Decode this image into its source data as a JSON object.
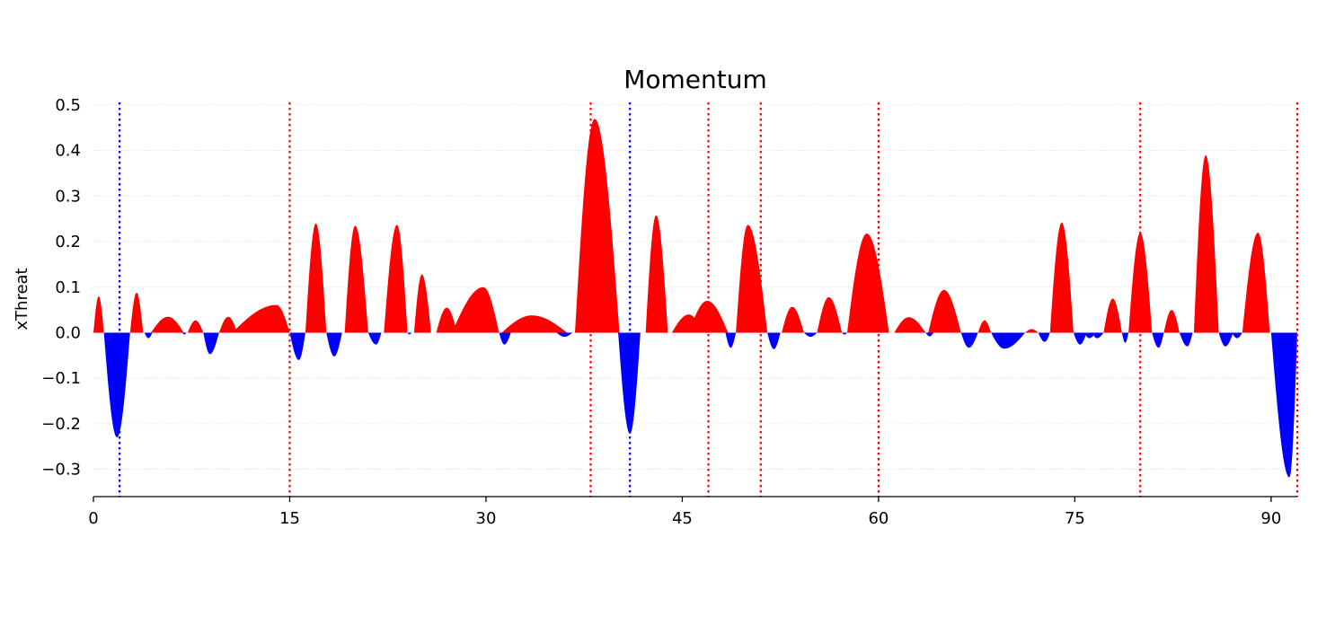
{
  "chart_data": {
    "type": "area",
    "title": "Momentum",
    "xlabel": "",
    "ylabel": "xThreat",
    "xlim": [
      0,
      92
    ],
    "ylim": [
      -0.36,
      0.5
    ],
    "xticks": [
      0,
      15,
      30,
      45,
      60,
      75,
      90
    ],
    "yticks": [
      -0.3,
      -0.2,
      -0.1,
      0.0,
      0.1,
      0.2,
      0.3,
      0.4,
      0.5
    ],
    "ytick_labels": [
      "−0.3",
      "−0.2",
      "−0.1",
      "0.0",
      "0.1",
      "0.2",
      "0.3",
      "0.4",
      "0.5"
    ],
    "grid": "horizontal",
    "positive_color": "#ff0000",
    "negative_color": "#0000ff",
    "series": [
      {
        "color": "#ff0000",
        "peaks": [
          {
            "start": 0.0,
            "end": 0.8,
            "x": 0.4,
            "y": 0.08
          },
          {
            "start": 2.8,
            "end": 3.8,
            "x": 3.3,
            "y": 0.088
          },
          {
            "start": 4.4,
            "end": 6.9,
            "x": 5.7,
            "y": 0.035
          },
          {
            "start": 7.2,
            "end": 8.4,
            "x": 7.8,
            "y": 0.027
          },
          {
            "start": 9.6,
            "end": 11.0,
            "x": 10.3,
            "y": 0.035
          },
          {
            "start": 10.6,
            "end": 15.0,
            "x": 14.0,
            "y": 0.061
          },
          {
            "start": 16.2,
            "end": 17.8,
            "x": 17.0,
            "y": 0.24
          },
          {
            "start": 19.2,
            "end": 21.0,
            "x": 20.0,
            "y": 0.235
          },
          {
            "start": 22.2,
            "end": 24.0,
            "x": 23.2,
            "y": 0.237
          },
          {
            "start": 24.5,
            "end": 25.8,
            "x": 25.1,
            "y": 0.128
          },
          {
            "start": 26.2,
            "end": 27.8,
            "x": 27.0,
            "y": 0.055
          },
          {
            "start": 27.4,
            "end": 31.0,
            "x": 29.8,
            "y": 0.1
          },
          {
            "start": 31.2,
            "end": 36.2,
            "x": 33.5,
            "y": 0.038
          },
          {
            "start": 36.8,
            "end": 40.2,
            "x": 38.3,
            "y": 0.47
          },
          {
            "start": 42.2,
            "end": 43.9,
            "x": 43.0,
            "y": 0.258
          },
          {
            "start": 44.2,
            "end": 46.6,
            "x": 45.5,
            "y": 0.04
          },
          {
            "start": 45.5,
            "end": 48.5,
            "x": 46.9,
            "y": 0.07
          },
          {
            "start": 49.1,
            "end": 51.5,
            "x": 50.0,
            "y": 0.237
          },
          {
            "start": 52.6,
            "end": 54.3,
            "x": 53.4,
            "y": 0.057
          },
          {
            "start": 55.3,
            "end": 57.2,
            "x": 56.2,
            "y": 0.078
          },
          {
            "start": 57.6,
            "end": 60.8,
            "x": 59.1,
            "y": 0.218
          },
          {
            "start": 61.2,
            "end": 63.6,
            "x": 62.3,
            "y": 0.034
          },
          {
            "start": 63.8,
            "end": 66.3,
            "x": 65.0,
            "y": 0.094
          },
          {
            "start": 67.6,
            "end": 68.6,
            "x": 68.1,
            "y": 0.027
          },
          {
            "start": 71.2,
            "end": 72.2,
            "x": 71.7,
            "y": 0.008
          },
          {
            "start": 73.1,
            "end": 74.9,
            "x": 74.0,
            "y": 0.242
          },
          {
            "start": 77.2,
            "end": 78.6,
            "x": 77.9,
            "y": 0.075
          },
          {
            "start": 79.1,
            "end": 80.9,
            "x": 80.0,
            "y": 0.22
          },
          {
            "start": 81.8,
            "end": 83.0,
            "x": 82.4,
            "y": 0.05
          },
          {
            "start": 84.1,
            "end": 86.0,
            "x": 85.0,
            "y": 0.39
          },
          {
            "start": 87.8,
            "end": 89.9,
            "x": 89.0,
            "y": 0.22
          }
        ]
      },
      {
        "color": "#0000ff",
        "peaks": [
          {
            "start": 0.8,
            "end": 2.8,
            "x": 1.8,
            "y": -0.23
          },
          {
            "start": 3.9,
            "end": 4.5,
            "x": 4.2,
            "y": -0.012
          },
          {
            "start": 6.8,
            "end": 7.1,
            "x": 6.95,
            "y": -0.004
          },
          {
            "start": 8.4,
            "end": 9.6,
            "x": 8.9,
            "y": -0.047
          },
          {
            "start": 15.0,
            "end": 16.2,
            "x": 15.7,
            "y": -0.06
          },
          {
            "start": 17.8,
            "end": 19.0,
            "x": 18.4,
            "y": -0.052
          },
          {
            "start": 21.0,
            "end": 22.0,
            "x": 21.6,
            "y": -0.026
          },
          {
            "start": 24.0,
            "end": 24.3,
            "x": 24.15,
            "y": -0.004
          },
          {
            "start": 31.0,
            "end": 31.9,
            "x": 31.4,
            "y": -0.026
          },
          {
            "start": 35.4,
            "end": 36.6,
            "x": 36.0,
            "y": -0.009
          },
          {
            "start": 40.1,
            "end": 41.8,
            "x": 41.0,
            "y": -0.222
          },
          {
            "start": 48.3,
            "end": 49.1,
            "x": 48.7,
            "y": -0.033
          },
          {
            "start": 51.5,
            "end": 52.5,
            "x": 52.0,
            "y": -0.036
          },
          {
            "start": 54.3,
            "end": 55.3,
            "x": 54.8,
            "y": -0.009
          },
          {
            "start": 57.2,
            "end": 57.6,
            "x": 57.4,
            "y": -0.004
          },
          {
            "start": 63.6,
            "end": 64.2,
            "x": 63.9,
            "y": -0.008
          },
          {
            "start": 66.3,
            "end": 67.6,
            "x": 66.9,
            "y": -0.033
          },
          {
            "start": 68.6,
            "end": 71.2,
            "x": 69.6,
            "y": -0.035
          },
          {
            "start": 72.2,
            "end": 73.1,
            "x": 72.7,
            "y": -0.02
          },
          {
            "start": 74.9,
            "end": 75.9,
            "x": 75.4,
            "y": -0.026
          },
          {
            "start": 75.7,
            "end": 76.6,
            "x": 76.1,
            "y": -0.012
          },
          {
            "start": 76.3,
            "end": 77.2,
            "x": 76.7,
            "y": -0.012
          },
          {
            "start": 78.6,
            "end": 79.1,
            "x": 78.85,
            "y": -0.022
          },
          {
            "start": 80.9,
            "end": 81.8,
            "x": 81.4,
            "y": -0.033
          },
          {
            "start": 83.0,
            "end": 84.0,
            "x": 83.6,
            "y": -0.03
          },
          {
            "start": 86.0,
            "end": 87.1,
            "x": 86.5,
            "y": -0.03
          },
          {
            "start": 87.0,
            "end": 87.8,
            "x": 87.4,
            "y": -0.012
          },
          {
            "start": 90.0,
            "end": 92.0,
            "x": 91.4,
            "y": -0.318
          }
        ]
      }
    ],
    "event_lines": [
      {
        "x": 2.0,
        "color": "#0000ff"
      },
      {
        "x": 15.0,
        "color": "#ff0000"
      },
      {
        "x": 38.0,
        "color": "#ff0000"
      },
      {
        "x": 41.0,
        "color": "#0000ff"
      },
      {
        "x": 47.0,
        "color": "#ff0000"
      },
      {
        "x": 51.0,
        "color": "#ff0000"
      },
      {
        "x": 60.0,
        "color": "#ff0000"
      },
      {
        "x": 80.0,
        "color": "#ff0000"
      },
      {
        "x": 92.0,
        "color": "#ff0000"
      }
    ]
  }
}
